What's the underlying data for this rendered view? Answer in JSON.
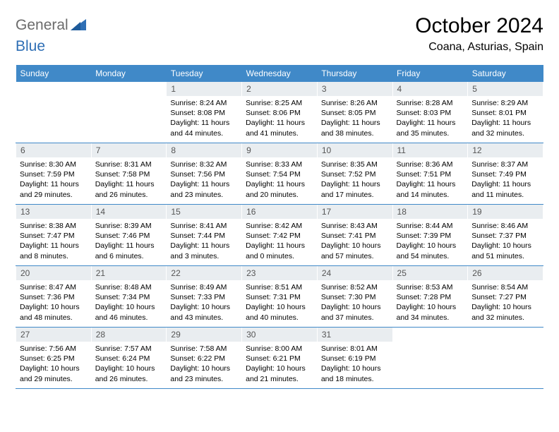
{
  "logo": {
    "text1": "General",
    "text2": "Blue"
  },
  "title": "October 2024",
  "location": "Coana, Asturias, Spain",
  "colors": {
    "header_bg": "#4089c8",
    "header_text": "#ffffff",
    "daynum_bg": "#e9edf0",
    "border": "#4089c8",
    "logo_gray": "#6b6b6b",
    "logo_blue": "#2f6fb5"
  },
  "weekdays": [
    "Sunday",
    "Monday",
    "Tuesday",
    "Wednesday",
    "Thursday",
    "Friday",
    "Saturday"
  ],
  "weeks": [
    [
      {
        "empty": true
      },
      {
        "empty": true
      },
      {
        "num": "1",
        "sunrise": "Sunrise: 8:24 AM",
        "sunset": "Sunset: 8:08 PM",
        "daylight": "Daylight: 11 hours and 44 minutes."
      },
      {
        "num": "2",
        "sunrise": "Sunrise: 8:25 AM",
        "sunset": "Sunset: 8:06 PM",
        "daylight": "Daylight: 11 hours and 41 minutes."
      },
      {
        "num": "3",
        "sunrise": "Sunrise: 8:26 AM",
        "sunset": "Sunset: 8:05 PM",
        "daylight": "Daylight: 11 hours and 38 minutes."
      },
      {
        "num": "4",
        "sunrise": "Sunrise: 8:28 AM",
        "sunset": "Sunset: 8:03 PM",
        "daylight": "Daylight: 11 hours and 35 minutes."
      },
      {
        "num": "5",
        "sunrise": "Sunrise: 8:29 AM",
        "sunset": "Sunset: 8:01 PM",
        "daylight": "Daylight: 11 hours and 32 minutes."
      }
    ],
    [
      {
        "num": "6",
        "sunrise": "Sunrise: 8:30 AM",
        "sunset": "Sunset: 7:59 PM",
        "daylight": "Daylight: 11 hours and 29 minutes."
      },
      {
        "num": "7",
        "sunrise": "Sunrise: 8:31 AM",
        "sunset": "Sunset: 7:58 PM",
        "daylight": "Daylight: 11 hours and 26 minutes."
      },
      {
        "num": "8",
        "sunrise": "Sunrise: 8:32 AM",
        "sunset": "Sunset: 7:56 PM",
        "daylight": "Daylight: 11 hours and 23 minutes."
      },
      {
        "num": "9",
        "sunrise": "Sunrise: 8:33 AM",
        "sunset": "Sunset: 7:54 PM",
        "daylight": "Daylight: 11 hours and 20 minutes."
      },
      {
        "num": "10",
        "sunrise": "Sunrise: 8:35 AM",
        "sunset": "Sunset: 7:52 PM",
        "daylight": "Daylight: 11 hours and 17 minutes."
      },
      {
        "num": "11",
        "sunrise": "Sunrise: 8:36 AM",
        "sunset": "Sunset: 7:51 PM",
        "daylight": "Daylight: 11 hours and 14 minutes."
      },
      {
        "num": "12",
        "sunrise": "Sunrise: 8:37 AM",
        "sunset": "Sunset: 7:49 PM",
        "daylight": "Daylight: 11 hours and 11 minutes."
      }
    ],
    [
      {
        "num": "13",
        "sunrise": "Sunrise: 8:38 AM",
        "sunset": "Sunset: 7:47 PM",
        "daylight": "Daylight: 11 hours and 8 minutes."
      },
      {
        "num": "14",
        "sunrise": "Sunrise: 8:39 AM",
        "sunset": "Sunset: 7:46 PM",
        "daylight": "Daylight: 11 hours and 6 minutes."
      },
      {
        "num": "15",
        "sunrise": "Sunrise: 8:41 AM",
        "sunset": "Sunset: 7:44 PM",
        "daylight": "Daylight: 11 hours and 3 minutes."
      },
      {
        "num": "16",
        "sunrise": "Sunrise: 8:42 AM",
        "sunset": "Sunset: 7:42 PM",
        "daylight": "Daylight: 11 hours and 0 minutes."
      },
      {
        "num": "17",
        "sunrise": "Sunrise: 8:43 AM",
        "sunset": "Sunset: 7:41 PM",
        "daylight": "Daylight: 10 hours and 57 minutes."
      },
      {
        "num": "18",
        "sunrise": "Sunrise: 8:44 AM",
        "sunset": "Sunset: 7:39 PM",
        "daylight": "Daylight: 10 hours and 54 minutes."
      },
      {
        "num": "19",
        "sunrise": "Sunrise: 8:46 AM",
        "sunset": "Sunset: 7:37 PM",
        "daylight": "Daylight: 10 hours and 51 minutes."
      }
    ],
    [
      {
        "num": "20",
        "sunrise": "Sunrise: 8:47 AM",
        "sunset": "Sunset: 7:36 PM",
        "daylight": "Daylight: 10 hours and 48 minutes."
      },
      {
        "num": "21",
        "sunrise": "Sunrise: 8:48 AM",
        "sunset": "Sunset: 7:34 PM",
        "daylight": "Daylight: 10 hours and 46 minutes."
      },
      {
        "num": "22",
        "sunrise": "Sunrise: 8:49 AM",
        "sunset": "Sunset: 7:33 PM",
        "daylight": "Daylight: 10 hours and 43 minutes."
      },
      {
        "num": "23",
        "sunrise": "Sunrise: 8:51 AM",
        "sunset": "Sunset: 7:31 PM",
        "daylight": "Daylight: 10 hours and 40 minutes."
      },
      {
        "num": "24",
        "sunrise": "Sunrise: 8:52 AM",
        "sunset": "Sunset: 7:30 PM",
        "daylight": "Daylight: 10 hours and 37 minutes."
      },
      {
        "num": "25",
        "sunrise": "Sunrise: 8:53 AM",
        "sunset": "Sunset: 7:28 PM",
        "daylight": "Daylight: 10 hours and 34 minutes."
      },
      {
        "num": "26",
        "sunrise": "Sunrise: 8:54 AM",
        "sunset": "Sunset: 7:27 PM",
        "daylight": "Daylight: 10 hours and 32 minutes."
      }
    ],
    [
      {
        "num": "27",
        "sunrise": "Sunrise: 7:56 AM",
        "sunset": "Sunset: 6:25 PM",
        "daylight": "Daylight: 10 hours and 29 minutes."
      },
      {
        "num": "28",
        "sunrise": "Sunrise: 7:57 AM",
        "sunset": "Sunset: 6:24 PM",
        "daylight": "Daylight: 10 hours and 26 minutes."
      },
      {
        "num": "29",
        "sunrise": "Sunrise: 7:58 AM",
        "sunset": "Sunset: 6:22 PM",
        "daylight": "Daylight: 10 hours and 23 minutes."
      },
      {
        "num": "30",
        "sunrise": "Sunrise: 8:00 AM",
        "sunset": "Sunset: 6:21 PM",
        "daylight": "Daylight: 10 hours and 21 minutes."
      },
      {
        "num": "31",
        "sunrise": "Sunrise: 8:01 AM",
        "sunset": "Sunset: 6:19 PM",
        "daylight": "Daylight: 10 hours and 18 minutes."
      },
      {
        "empty": true
      },
      {
        "empty": true
      }
    ]
  ]
}
